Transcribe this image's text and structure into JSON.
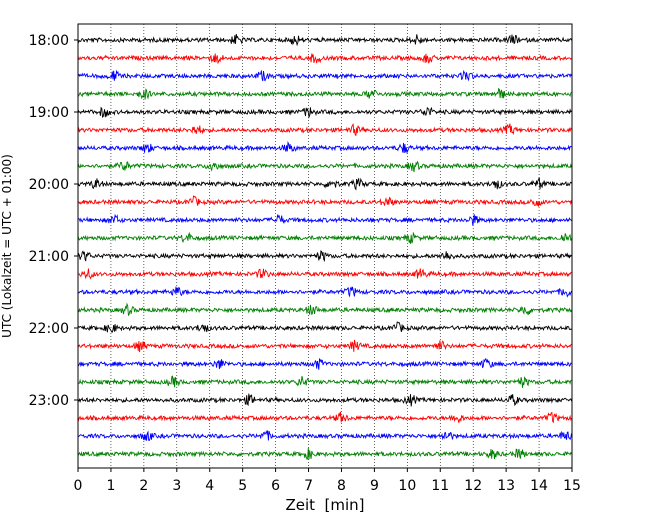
{
  "chart_data": {
    "type": "line",
    "xlabel": "Zeit  [min]",
    "ylabel": "UTC (Lokalzeit = UTC + 01:00)",
    "xlim": [
      0,
      15
    ],
    "x_ticks": [
      0,
      1,
      2,
      3,
      4,
      5,
      6,
      7,
      8,
      9,
      10,
      11,
      12,
      13,
      14,
      15
    ],
    "x_tick_labels": [
      "0",
      "1",
      "2",
      "3",
      "4",
      "5",
      "6",
      "7",
      "8",
      "9",
      "10",
      "11",
      "12",
      "13",
      "14",
      "15"
    ],
    "y_tick_labels": [
      "18:00",
      "19:00",
      "20:00",
      "21:00",
      "22:00",
      "23:00"
    ],
    "grid": "vertical dotted lines at each minute",
    "trace_interval_minutes": 15,
    "trace_colors": [
      "#000000",
      "#ff0000",
      "#0000ff",
      "#008000"
    ],
    "traces": [
      {
        "start": "18:00",
        "color": "#000000",
        "events_min": [
          4.8,
          6.6,
          10.3,
          13.2
        ]
      },
      {
        "start": "18:15",
        "color": "#ff0000",
        "events_min": [
          4.2,
          7.2,
          10.6
        ]
      },
      {
        "start": "18:30",
        "color": "#0000ff",
        "events_min": [
          1.1,
          5.6,
          11.8
        ]
      },
      {
        "start": "18:45",
        "color": "#008000",
        "events_min": [
          2.0,
          8.9,
          12.8
        ]
      },
      {
        "start": "19:00",
        "color": "#000000",
        "events_min": [
          0.8,
          7.0,
          10.6
        ]
      },
      {
        "start": "19:15",
        "color": "#ff0000",
        "events_min": [
          3.6,
          8.4,
          13.1
        ]
      },
      {
        "start": "19:30",
        "color": "#0000ff",
        "events_min": [
          2.1,
          6.4,
          9.9
        ]
      },
      {
        "start": "19:45",
        "color": "#008000",
        "events_min": [
          1.4,
          4.1,
          10.2
        ]
      },
      {
        "start": "20:00",
        "color": "#000000",
        "events_min": [
          0.55,
          7.7,
          8.5,
          12.7,
          14.0
        ]
      },
      {
        "start": "20:15",
        "color": "#ff0000",
        "events_min": [
          3.5,
          9.4,
          13.9
        ]
      },
      {
        "start": "20:30",
        "color": "#0000ff",
        "events_min": [
          1.1,
          6.1,
          12.0
        ]
      },
      {
        "start": "20:45",
        "color": "#008000",
        "events_min": [
          3.3,
          10.1,
          14.8
        ]
      },
      {
        "start": "21:00",
        "color": "#000000",
        "events_min": [
          0.2,
          7.4,
          11.2
        ]
      },
      {
        "start": "21:15",
        "color": "#ff0000",
        "events_min": [
          0.3,
          5.6,
          10.4
        ]
      },
      {
        "start": "21:30",
        "color": "#0000ff",
        "events_min": [
          3.0,
          8.3,
          14.8
        ]
      },
      {
        "start": "21:45",
        "color": "#008000",
        "events_min": [
          1.5,
          7.1,
          13.6
        ]
      },
      {
        "start": "22:00",
        "color": "#000000",
        "events_min": [
          1.0,
          3.8,
          9.7
        ]
      },
      {
        "start": "22:15",
        "color": "#ff0000",
        "events_min": [
          1.9,
          8.4,
          11.0
        ]
      },
      {
        "start": "22:30",
        "color": "#0000ff",
        "events_min": [
          4.3,
          7.3,
          12.4
        ]
      },
      {
        "start": "22:45",
        "color": "#008000",
        "events_min": [
          2.9,
          6.8,
          13.5
        ]
      },
      {
        "start": "23:00",
        "color": "#000000",
        "events_min": [
          5.2,
          10.1,
          13.2
        ]
      },
      {
        "start": "23:15",
        "color": "#ff0000",
        "events_min": [
          8.0,
          11.5,
          14.4
        ]
      },
      {
        "start": "23:30",
        "color": "#0000ff",
        "events_min": [
          2.1,
          5.7,
          11.2,
          14.8
        ]
      },
      {
        "start": "23:45",
        "color": "#008000",
        "events_min": [
          7.0,
          12.6,
          13.4
        ]
      }
    ]
  }
}
